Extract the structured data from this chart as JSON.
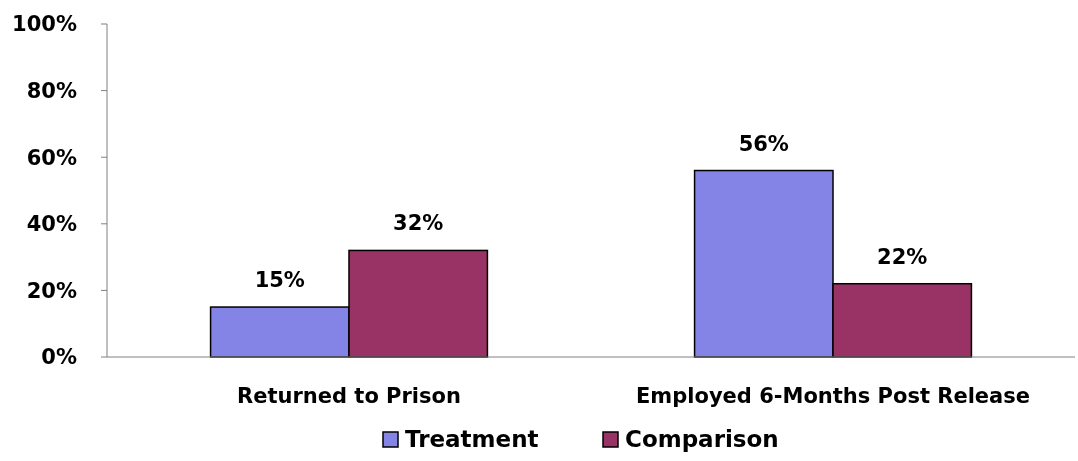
{
  "chart_data": {
    "type": "bar",
    "categories": [
      "Returned to Prison",
      "Employed 6-Months Post Release"
    ],
    "series": [
      {
        "name": "Treatment",
        "color": "#8484e6",
        "values": [
          15,
          56
        ],
        "value_labels": [
          "15%",
          "56%"
        ]
      },
      {
        "name": "Comparison",
        "color": "#993366",
        "values": [
          32,
          22
        ],
        "value_labels": [
          "32%",
          "22%"
        ]
      }
    ],
    "ylim": [
      0,
      100
    ],
    "yticks": [
      {
        "value": 0,
        "label": "0%"
      },
      {
        "value": 20,
        "label": "20%"
      },
      {
        "value": 40,
        "label": "40%"
      },
      {
        "value": 60,
        "label": "60%"
      },
      {
        "value": 80,
        "label": "80%"
      },
      {
        "value": 100,
        "label": "100%"
      }
    ],
    "legend": "bottom"
  }
}
